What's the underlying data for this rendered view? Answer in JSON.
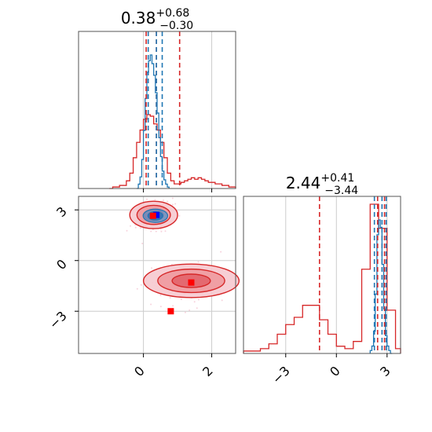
{
  "chart_data": {
    "type": "corner",
    "colors": {
      "reference": "#d62728",
      "posterior": "#1f77b4",
      "grid": "#cccccc",
      "frame": "#555555",
      "truth_a": "#ff0000",
      "truth_b": "#0000ff"
    },
    "titles": [
      {
        "param": "p0",
        "median": "0.38",
        "plus": "+0.68",
        "minus": "−0.30"
      },
      {
        "param": "p1",
        "median": "2.44",
        "plus": "+0.41",
        "minus": "−3.44"
      }
    ],
    "axes": {
      "p0": {
        "range": [
          -1.9,
          2.7
        ],
        "ticks": [
          0,
          2
        ],
        "tick_labels": [
          "0",
          "2"
        ]
      },
      "p1": {
        "range": [
          -5.5,
          3.8
        ],
        "ticks": [
          -3,
          0,
          3
        ],
        "tick_labels": [
          "−3",
          "0",
          "3"
        ]
      }
    },
    "hist_p0": {
      "reference": {
        "bins": [
          -1.0,
          -0.9,
          -0.8,
          -0.7,
          -0.6,
          -0.5,
          -0.4,
          -0.3,
          -0.2,
          -0.1,
          0.0,
          0.1,
          0.2,
          0.3,
          0.4,
          0.5,
          0.6,
          0.7,
          0.8,
          0.9,
          1.0,
          1.1,
          1.2,
          1.3,
          1.4,
          1.5,
          1.6,
          1.7,
          1.8,
          1.9,
          2.0,
          2.1,
          2.2,
          2.3,
          2.4,
          2.5,
          2.6,
          2.7
        ],
        "counts": [
          0.0,
          0.01,
          0.01,
          0.02,
          0.02,
          0.05,
          0.1,
          0.2,
          0.3,
          0.38,
          0.45,
          0.48,
          0.47,
          0.42,
          0.38,
          0.3,
          0.2,
          0.1,
          0.05,
          0.03,
          0.03,
          0.04,
          0.05,
          0.06,
          0.07,
          0.06,
          0.07,
          0.06,
          0.05,
          0.04,
          0.04,
          0.03,
          0.03,
          0.02,
          0.02,
          0.01,
          0.01
        ]
      },
      "posterior": {
        "bins": [
          -0.2,
          -0.15,
          -0.1,
          -0.05,
          0.0,
          0.05,
          0.1,
          0.15,
          0.2,
          0.25,
          0.3,
          0.35,
          0.4,
          0.45,
          0.5,
          0.55,
          0.6,
          0.65,
          0.7,
          0.75
        ],
        "counts": [
          0.0,
          0.03,
          0.08,
          0.2,
          0.4,
          0.62,
          0.8,
          0.88,
          0.92,
          0.86,
          0.78,
          0.66,
          0.52,
          0.35,
          0.22,
          0.12,
          0.06,
          0.03,
          0.01
        ]
      },
      "reference_quantiles": [
        0.08,
        0.38,
        1.06
      ],
      "posterior_quantiles": [
        0.14,
        0.38,
        0.55
      ]
    },
    "hist_p1": {
      "reference": {
        "bins": [
          -5.5,
          -5.0,
          -4.5,
          -4.0,
          -3.5,
          -3.0,
          -2.5,
          -2.0,
          -1.5,
          -1.0,
          -0.5,
          0.0,
          0.5,
          1.0,
          1.5,
          2.0,
          2.5,
          3.0,
          3.5,
          3.8
        ],
        "counts": [
          0.01,
          0.01,
          0.02,
          0.04,
          0.08,
          0.12,
          0.15,
          0.2,
          0.2,
          0.14,
          0.08,
          0.03,
          0.02,
          0.05,
          0.35,
          0.62,
          0.52,
          0.18,
          0.02
        ]
      },
      "posterior": {
        "bins": [
          2.0,
          2.1,
          2.2,
          2.3,
          2.4,
          2.5,
          2.6,
          2.7,
          2.8,
          2.9,
          3.0,
          3.1,
          3.2,
          3.3
        ],
        "counts": [
          0.02,
          0.05,
          0.15,
          0.4,
          0.8,
          0.9,
          0.85,
          0.6,
          0.3,
          0.12,
          0.05,
          0.02,
          0.0
        ]
      },
      "reference_quantiles": [
        -1.0,
        2.44,
        2.85
      ],
      "posterior_quantiles": [
        2.25,
        2.7,
        2.95
      ]
    },
    "scatter_2d": {
      "reference_modes": [
        {
          "center": [
            0.3,
            2.7
          ],
          "spread": [
            0.35,
            0.45
          ]
        },
        {
          "center": [
            1.4,
            -1.2
          ],
          "spread": [
            0.7,
            0.55
          ]
        }
      ],
      "posterior_mode": {
        "center": [
          0.35,
          2.65
        ],
        "spread": [
          0.2,
          0.22
        ]
      },
      "markers": [
        {
          "x": 0.38,
          "y": 2.7,
          "color": "#0000ff"
        },
        {
          "x": 0.28,
          "y": 2.65,
          "color": "#ff0000"
        },
        {
          "x": 1.4,
          "y": -1.3,
          "color": "#ff0000"
        },
        {
          "x": 0.8,
          "y": -3.0,
          "color": "#ff0000"
        }
      ]
    }
  }
}
